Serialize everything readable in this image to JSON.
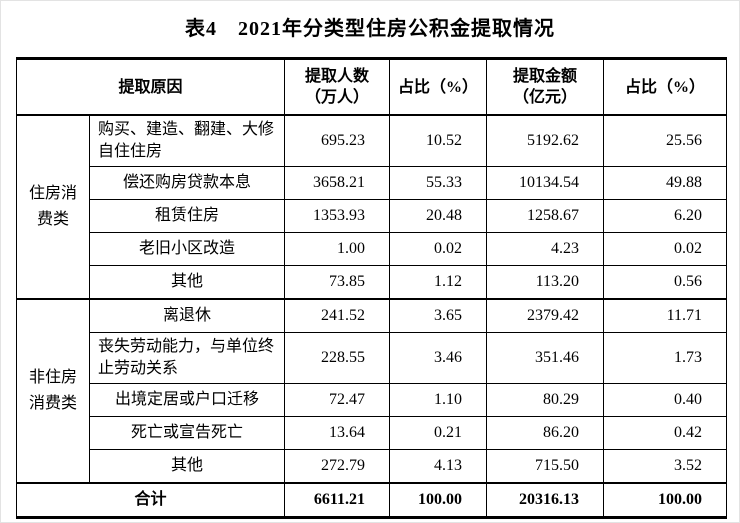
{
  "title": "表4　2021年分类型住房公积金提取情况",
  "header": {
    "reason": "提取原因",
    "people": "提取人数\n（万人）",
    "pct_people": "占比（%）",
    "amount": "提取金额\n（亿元）",
    "pct_amount": "占比（%）"
  },
  "groups": [
    {
      "category": "住房消费类",
      "rows": [
        {
          "reason": "购买、建造、翻建、大修自住住房",
          "people": "695.23",
          "pct_people": "10.52",
          "amount": "5192.62",
          "pct_amount": "25.56"
        },
        {
          "reason": "偿还购房贷款本息",
          "people": "3658.21",
          "pct_people": "55.33",
          "amount": "10134.54",
          "pct_amount": "49.88"
        },
        {
          "reason": "租赁住房",
          "people": "1353.93",
          "pct_people": "20.48",
          "amount": "1258.67",
          "pct_amount": "6.20"
        },
        {
          "reason": "老旧小区改造",
          "people": "1.00",
          "pct_people": "0.02",
          "amount": "4.23",
          "pct_amount": "0.02"
        },
        {
          "reason": "其他",
          "people": "73.85",
          "pct_people": "1.12",
          "amount": "113.20",
          "pct_amount": "0.56"
        }
      ]
    },
    {
      "category": "非住房消费类",
      "rows": [
        {
          "reason": "离退休",
          "people": "241.52",
          "pct_people": "3.65",
          "amount": "2379.42",
          "pct_amount": "11.71"
        },
        {
          "reason": "丧失劳动能力，与单位终止劳动关系",
          "people": "228.55",
          "pct_people": "3.46",
          "amount": "351.46",
          "pct_amount": "1.73"
        },
        {
          "reason": "出境定居或户口迁移",
          "people": "72.47",
          "pct_people": "1.10",
          "amount": "80.29",
          "pct_amount": "0.40"
        },
        {
          "reason": "死亡或宣告死亡",
          "people": "13.64",
          "pct_people": "0.21",
          "amount": "86.20",
          "pct_amount": "0.42"
        },
        {
          "reason": "其他",
          "people": "272.79",
          "pct_people": "4.13",
          "amount": "715.50",
          "pct_amount": "3.52"
        }
      ]
    }
  ],
  "total": {
    "label": "合计",
    "people": "6611.21",
    "pct_people": "100.00",
    "amount": "20316.13",
    "pct_amount": "100.00"
  }
}
